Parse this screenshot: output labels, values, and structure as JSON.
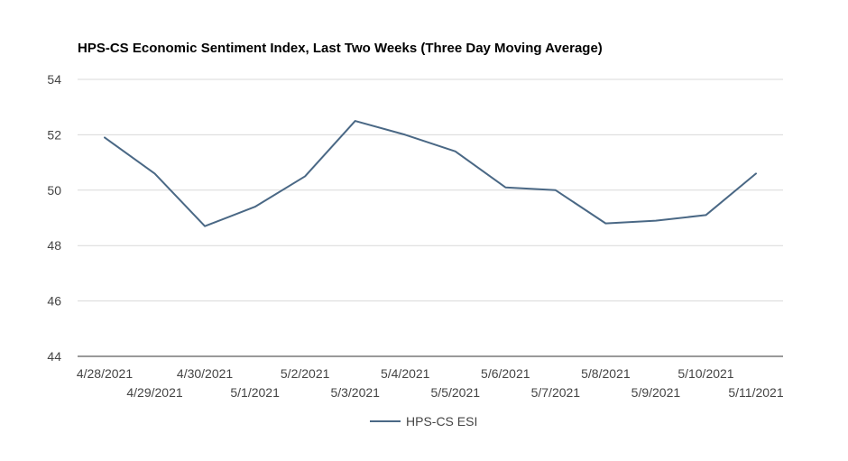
{
  "chart_data": {
    "type": "line",
    "title": "HPS-CS Economic Sentiment Index, Last Two Weeks (Three Day Moving Average)",
    "xlabel": "",
    "ylabel": "",
    "categories": [
      "4/28/2021",
      "4/29/2021",
      "4/30/2021",
      "5/1/2021",
      "5/2/2021",
      "5/3/2021",
      "5/4/2021",
      "5/5/2021",
      "5/6/2021",
      "5/7/2021",
      "5/8/2021",
      "5/9/2021",
      "5/10/2021",
      "5/11/2021"
    ],
    "series": [
      {
        "name": "HPS-CS ESI",
        "values": [
          51.9,
          50.6,
          48.7,
          49.4,
          50.5,
          52.5,
          52.0,
          51.4,
          50.1,
          50.0,
          48.8,
          48.9,
          49.1,
          50.6
        ],
        "color": "#4a6885"
      }
    ],
    "ylim": [
      44,
      54
    ],
    "yticks": [
      44,
      46,
      48,
      50,
      52,
      54
    ],
    "grid": true,
    "legend_position": "bottom"
  }
}
